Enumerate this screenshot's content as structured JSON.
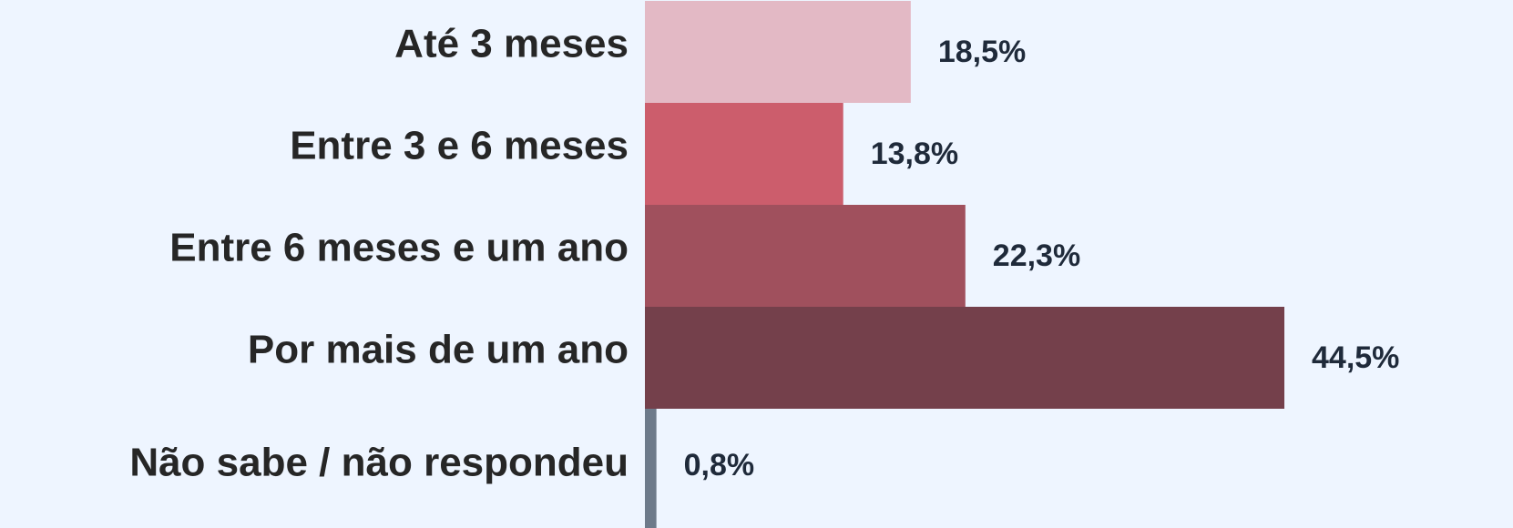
{
  "chart_data": {
    "type": "bar",
    "orientation": "horizontal",
    "categories": [
      "Até 3 meses",
      "Entre 3 e 6 meses",
      "Entre 6 meses e um ano",
      "Por mais de um ano",
      "Não sabe / não respondeu"
    ],
    "values": [
      18.5,
      13.8,
      22.3,
      44.5,
      0.8
    ],
    "value_labels": [
      "18,5%",
      "13,8%",
      "22,3%",
      "44,5%",
      "0,8%"
    ],
    "colors": [
      "#e3b9c5",
      "#cc5d6c",
      "#a0505d",
      "#74404b",
      "#6d7a8a"
    ]
  }
}
